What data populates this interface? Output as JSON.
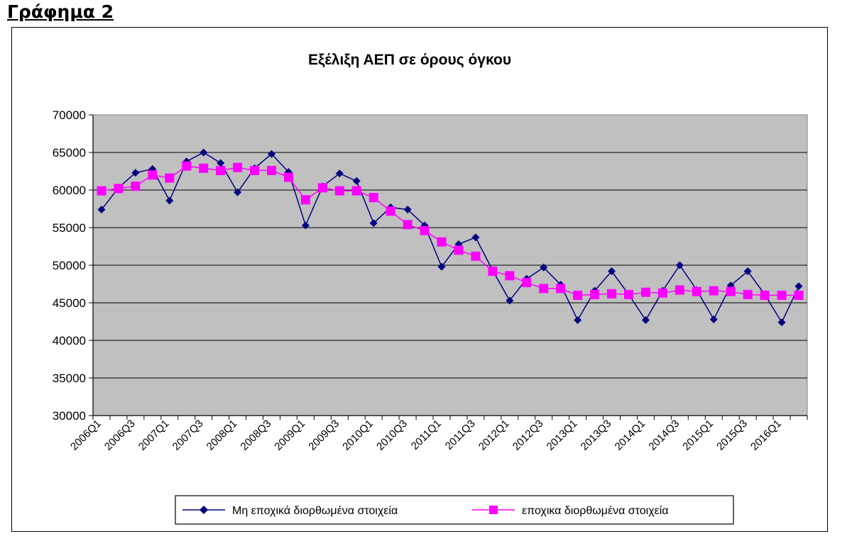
{
  "heading": "Γράφημα 2",
  "chart_data": {
    "type": "line",
    "title": "Εξέλιξη ΑΕΠ σε όρους όγκου",
    "xlabel": "",
    "ylabel": "",
    "ylim": [
      30000,
      70000
    ],
    "yticks": [
      30000,
      35000,
      40000,
      45000,
      50000,
      55000,
      60000,
      65000,
      70000
    ],
    "grid": true,
    "legend_position": "bottom",
    "categories": [
      "2006Q1",
      "2006Q2",
      "2006Q3",
      "2006Q4",
      "2007Q1",
      "2007Q2",
      "2007Q3",
      "2007Q4",
      "2008Q1",
      "2008Q2",
      "2008Q3",
      "2008Q4",
      "2009Q1",
      "2009Q2",
      "2009Q3",
      "2009Q4",
      "2010Q1",
      "2010Q2",
      "2010Q3",
      "2010Q4",
      "2011Q1",
      "2011Q2",
      "2011Q3",
      "2011Q4",
      "2012Q1",
      "2012Q2",
      "2012Q3",
      "2012Q4",
      "2013Q1",
      "2013Q2",
      "2013Q3",
      "2013Q4",
      "2014Q1",
      "2014Q2",
      "2014Q3",
      "2014Q4",
      "2015Q1",
      "2015Q2",
      "2015Q3",
      "2015Q4",
      "2016Q1",
      "2016Q2"
    ],
    "tick_labels": [
      "2006Q1",
      "2006Q3",
      "2007Q1",
      "2007Q3",
      "2008Q1",
      "2008Q3",
      "2009Q1",
      "2009Q3",
      "2010Q1",
      "2010Q3",
      "2011Q1",
      "2011Q3",
      "2012Q1",
      "2012Q3",
      "2013Q1",
      "2013Q3",
      "2014Q1",
      "2014Q3",
      "2015Q1",
      "2015Q3",
      "2016Q1"
    ],
    "series": [
      {
        "name": "Μη εποχικά διορθωμένα στοιχεία",
        "color": "#000080",
        "marker": "diamond",
        "values": [
          57400,
          60300,
          62300,
          62800,
          58600,
          63800,
          65000,
          63600,
          59700,
          62900,
          64800,
          62400,
          55300,
          60500,
          62200,
          61200,
          55600,
          57700,
          57400,
          55300,
          49800,
          52800,
          53700,
          49300,
          45300,
          48200,
          49700,
          47400,
          42700,
          46600,
          49200,
          46100,
          42700,
          46600,
          50000,
          46700,
          42800,
          47300,
          49200,
          46100,
          42400,
          47200
        ]
      },
      {
        "name": "εποχικα διορθωμένα στοιχεία",
        "color": "#FF00FF",
        "marker": "square",
        "values": [
          59900,
          60200,
          60500,
          62000,
          61600,
          63200,
          62900,
          62600,
          63000,
          62600,
          62600,
          61700,
          58700,
          60300,
          59900,
          59900,
          59000,
          57200,
          55400,
          54600,
          53100,
          52000,
          51200,
          49200,
          48600,
          47700,
          46900,
          46900,
          46000,
          46100,
          46200,
          46100,
          46400,
          46300,
          46700,
          46500,
          46600,
          46500,
          46100,
          46000,
          46000,
          46000
        ]
      }
    ]
  }
}
